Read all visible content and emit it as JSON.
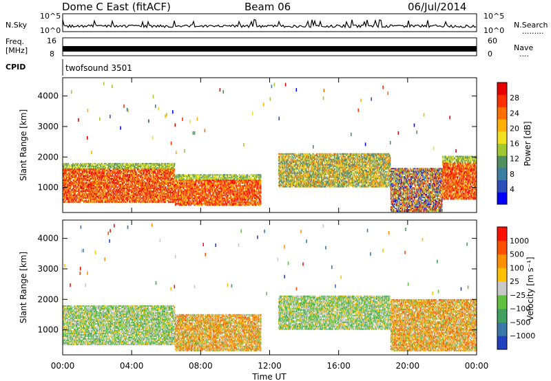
{
  "header": {
    "station": "Dome C East (fitACF)",
    "beam": "Beam 06",
    "date": "06/Jul/2014"
  },
  "top_panels": {
    "nsky_label": "N.Sky",
    "nsky_ticks": [
      "10^5",
      "10^0"
    ],
    "nsearch_label": "N.Search",
    "nsearch_ticks": [
      "10^5",
      "10^0"
    ],
    "nsearch_dots": "·········",
    "freq_label": "Freq.",
    "freq_unit": "[MHz]",
    "freq_ticks": [
      "16",
      "8"
    ],
    "nave_label": "Nave",
    "nave_ticks": [
      "60",
      "0"
    ],
    "nave_dots": "····",
    "cpid_label": "CPID",
    "cpid_value": "twofsound 3501"
  },
  "chart_data": [
    {
      "type": "heatmap",
      "panel": "power",
      "xlabel": "",
      "ylabel": "Slant Range [km]",
      "xlim": [
        "00:00",
        "24:00"
      ],
      "ylim": [
        180,
        4600
      ],
      "yticks": [
        "4000",
        "3000",
        "2000",
        "1000"
      ],
      "colorbar_label": "Power [dB]",
      "colorbar_ticks": [
        "28",
        "24",
        "20",
        "16",
        "12",
        "8",
        "4"
      ],
      "colorbar_colors": [
        "#0000ff",
        "#2a4fb8",
        "#3a7ea0",
        "#4f9060",
        "#a0c830",
        "#f0e020",
        "#ffb000",
        "#ff7000",
        "#ff3000",
        "#e80000"
      ],
      "regions": [
        {
          "t_start": 0.0,
          "t_end": 6.5,
          "r_min": 500,
          "r_max": 1800,
          "level": "high"
        },
        {
          "t_start": 6.5,
          "t_end": 11.5,
          "r_min": 400,
          "r_max": 1400,
          "level": "high"
        },
        {
          "t_start": 12.5,
          "t_end": 19.0,
          "r_min": 1000,
          "r_max": 2100,
          "level": "medium"
        },
        {
          "t_start": 19.0,
          "t_end": 22.0,
          "r_min": 200,
          "r_max": 1600,
          "level": "mixed"
        },
        {
          "t_start": 22.0,
          "t_end": 24.0,
          "r_min": 600,
          "r_max": 2000,
          "level": "high"
        }
      ]
    },
    {
      "type": "heatmap",
      "panel": "velocity",
      "xlabel": "Time UT",
      "ylabel": "Slant Range [km]",
      "xlim": [
        "00:00",
        "24:00"
      ],
      "ylim": [
        180,
        4600
      ],
      "xticks": [
        "00:00",
        "04:00",
        "08:00",
        "12:00",
        "16:00",
        "20:00",
        "00:00"
      ],
      "yticks": [
        "4000",
        "3000",
        "2000",
        "1000"
      ],
      "colorbar_label": "Velocity [m s⁻¹]",
      "colorbar_ticks": [
        "1000",
        "500",
        "100",
        "25",
        "−25",
        "−100",
        "−500",
        "−1000"
      ],
      "colorbar_colors": [
        "#2040c0",
        "#3a78a8",
        "#40a060",
        "#60c040",
        "#c8c8c8",
        "#ffc000",
        "#ff9000",
        "#ff5000",
        "#ff1000"
      ],
      "regions": [
        {
          "t_start": 0.0,
          "t_end": 6.5,
          "r_min": 500,
          "r_max": 1800,
          "dominant": "green/grey"
        },
        {
          "t_start": 6.5,
          "t_end": 11.5,
          "r_min": 300,
          "r_max": 1500,
          "dominant": "orange"
        },
        {
          "t_start": 12.5,
          "t_end": 19.0,
          "r_min": 1000,
          "r_max": 2100,
          "dominant": "green"
        },
        {
          "t_start": 19.0,
          "t_end": 24.0,
          "r_min": 300,
          "r_max": 2000,
          "dominant": "orange/green"
        }
      ]
    }
  ]
}
